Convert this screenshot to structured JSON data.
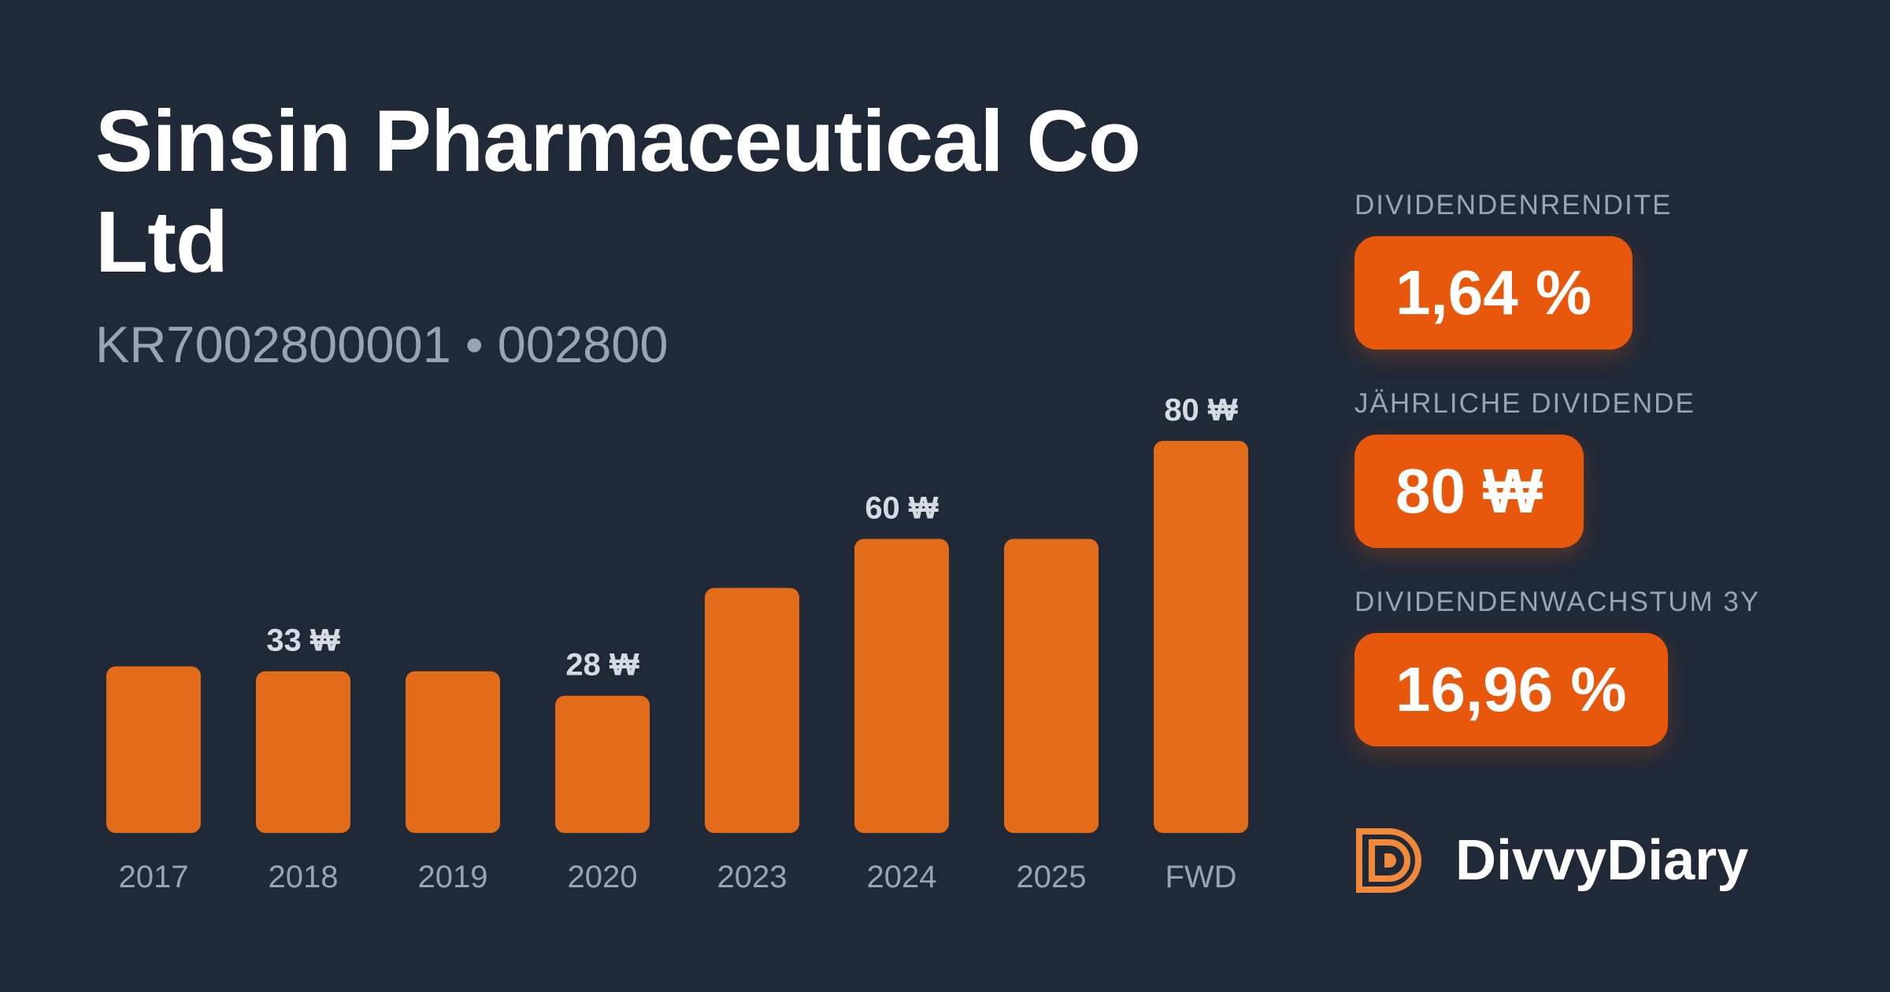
{
  "header": {
    "title": "Sinsin Pharmaceutical Co Ltd",
    "identifiers": "KR7002800001 • 002800"
  },
  "metrics": [
    {
      "label": "DIVIDENDENRENDITE",
      "value": "1,64 %"
    },
    {
      "label": "JÄHRLICHE DIVIDENDE",
      "value": "80 ₩"
    },
    {
      "label": "DIVIDENDENWACHSTUM 3Y",
      "value": "16,96 %"
    }
  ],
  "brand": {
    "name": "DivvyDiary",
    "logo_icon": "divvydiary-logo-icon"
  },
  "colors": {
    "background": "#202938",
    "bar": "#e36c1a",
    "metric_badge": "#e8580c",
    "muted_text": "#9aa3b2"
  },
  "chart_data": {
    "type": "bar",
    "categories": [
      "2017",
      "2018",
      "2019",
      "2020",
      "2023",
      "2024",
      "2025",
      "FWD"
    ],
    "values": [
      34,
      33,
      33,
      28,
      50,
      60,
      60,
      80
    ],
    "data_labels": [
      "",
      "33 ₩",
      "",
      "28 ₩",
      "",
      "60 ₩",
      "",
      "80 ₩"
    ],
    "unit": "₩",
    "ylim": [
      0,
      80
    ],
    "grid": false,
    "legend": "none"
  }
}
